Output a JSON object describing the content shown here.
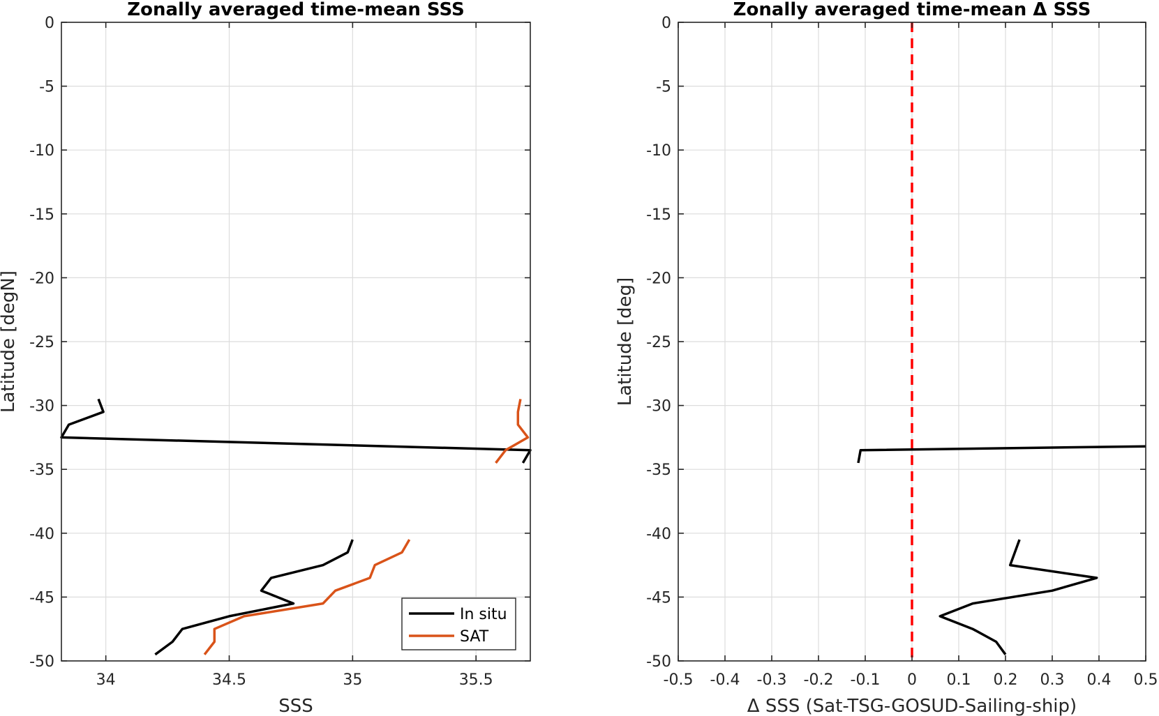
{
  "chart_data": [
    {
      "type": "line",
      "title": "Zonally averaged time-mean SSS",
      "xlabel": "SSS",
      "ylabel": "Latitude [degN]",
      "xlim": [
        33.82,
        35.72
      ],
      "ylim": [
        -50,
        0
      ],
      "xticks": [
        34,
        34.5,
        35,
        35.5
      ],
      "xtick_labels": [
        "34",
        "34.5",
        "35",
        "35.5"
      ],
      "yticks": [
        0,
        -5,
        -10,
        -15,
        -20,
        -25,
        -30,
        -35,
        -40,
        -45,
        -50
      ],
      "ytick_labels": [
        "0",
        "-5",
        "-10",
        "-15",
        "-20",
        "-25",
        "-30",
        "-35",
        "-40",
        "-45",
        "-50"
      ],
      "grid": true,
      "legend": {
        "position": "bottom-right",
        "entries": [
          "In situ",
          "SAT"
        ]
      },
      "series": [
        {
          "name": "In situ",
          "color": "#000000",
          "segments": [
            [
              [
                33.97,
                -29.5
              ],
              [
                33.99,
                -30.5
              ],
              [
                33.85,
                -31.5
              ],
              [
                33.82,
                -32.5
              ],
              [
                35.72,
                -33.5
              ],
              [
                35.69,
                -34.5
              ]
            ],
            [
              [
                35.0,
                -40.5
              ],
              [
                34.98,
                -41.5
              ],
              [
                34.88,
                -42.5
              ],
              [
                34.67,
                -43.5
              ],
              [
                34.63,
                -44.5
              ],
              [
                34.76,
                -45.5
              ],
              [
                34.5,
                -46.5
              ],
              [
                34.31,
                -47.5
              ],
              [
                34.27,
                -48.5
              ],
              [
                34.2,
                -49.5
              ]
            ]
          ]
        },
        {
          "name": "SAT",
          "color": "#d95319",
          "segments": [
            [
              [
                35.68,
                -29.5
              ],
              [
                35.67,
                -30.5
              ],
              [
                35.67,
                -31.5
              ],
              [
                35.71,
                -32.5
              ],
              [
                35.62,
                -33.5
              ],
              [
                35.58,
                -34.5
              ]
            ],
            [
              [
                35.23,
                -40.5
              ],
              [
                35.2,
                -41.5
              ],
              [
                35.09,
                -42.5
              ],
              [
                35.07,
                -43.5
              ],
              [
                34.93,
                -44.5
              ],
              [
                34.88,
                -45.5
              ],
              [
                34.56,
                -46.5
              ],
              [
                34.44,
                -47.5
              ],
              [
                34.44,
                -48.5
              ],
              [
                34.4,
                -49.5
              ]
            ]
          ]
        }
      ]
    },
    {
      "type": "line",
      "title": "Zonally averaged time-mean Δ SSS",
      "xlabel": "Δ SSS (Sat-TSG-GOSUD-Sailing-ship)",
      "ylabel": "Latitude [deg]",
      "xlim": [
        -0.5,
        0.5
      ],
      "ylim": [
        -50,
        0
      ],
      "xticks": [
        -0.5,
        -0.4,
        -0.3,
        -0.2,
        -0.1,
        0,
        0.1,
        0.2,
        0.3,
        0.4,
        0.5
      ],
      "xtick_labels": [
        "-0.5",
        "-0.4",
        "-0.3",
        "-0.2",
        "-0.1",
        "0",
        "0.1",
        "0.2",
        "0.3",
        "0.4",
        "0.5"
      ],
      "yticks": [
        0,
        -5,
        -10,
        -15,
        -20,
        -25,
        -30,
        -35,
        -40,
        -45,
        -50
      ],
      "ytick_labels": [
        "0",
        "-5",
        "-10",
        "-15",
        "-20",
        "-25",
        "-30",
        "-35",
        "-40",
        "-45",
        "-50"
      ],
      "grid": true,
      "reference_line": {
        "x": 0,
        "color": "#ff0000",
        "style": "dashed"
      },
      "series": [
        {
          "color": "#000000",
          "segments": [
            [
              [
                -0.115,
                -34.5
              ],
              [
                -0.11,
                -33.5
              ],
              [
                0.5,
                -33.2
              ]
            ],
            [
              [
                0.23,
                -40.5
              ],
              [
                0.22,
                -41.5
              ],
              [
                0.21,
                -42.5
              ],
              [
                0.395,
                -43.5
              ],
              [
                0.3,
                -44.5
              ],
              [
                0.13,
                -45.5
              ],
              [
                0.06,
                -46.5
              ],
              [
                0.13,
                -47.5
              ],
              [
                0.18,
                -48.5
              ],
              [
                0.2,
                -49.5
              ]
            ]
          ]
        }
      ]
    }
  ]
}
